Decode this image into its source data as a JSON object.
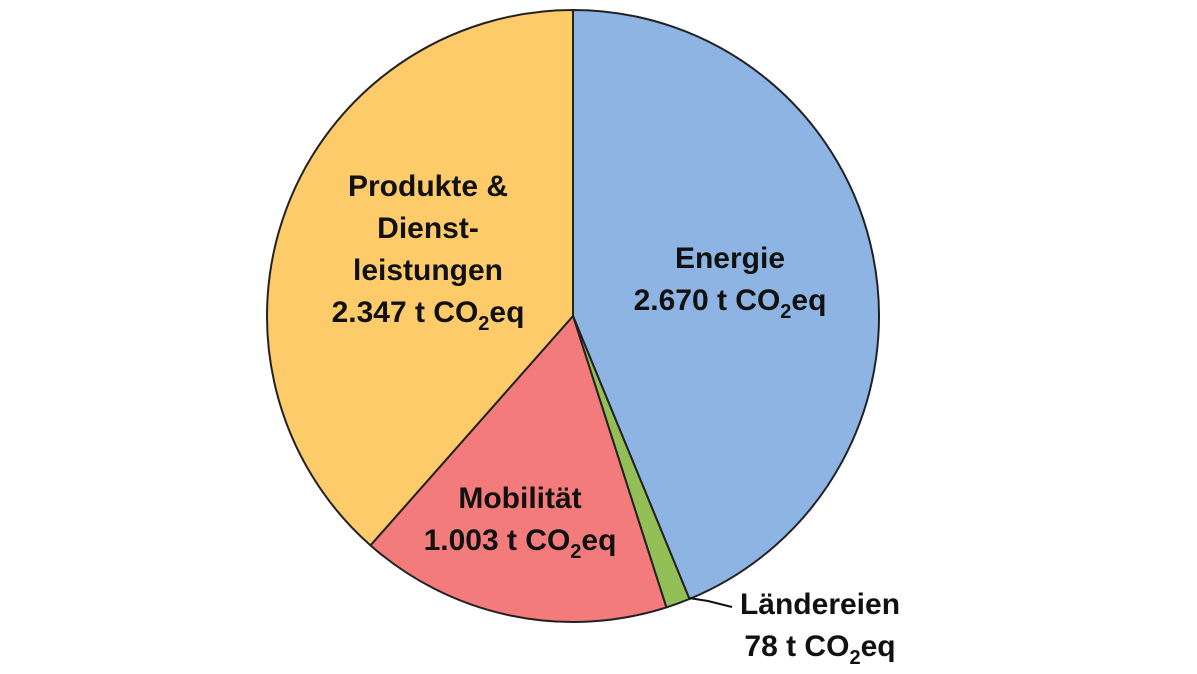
{
  "chart_data": {
    "type": "pie",
    "start_angle_deg": 0,
    "direction": "clockwise",
    "slices": [
      {
        "key": "energie",
        "value": 2670,
        "color": "#8EB4E3",
        "label_lines": [
          "Energie"
        ],
        "value_label": {
          "pre": "2.670 t CO",
          "sub": "2",
          "post": "eq"
        }
      },
      {
        "key": "laendereien",
        "value": 78,
        "color": "#92C057",
        "label_lines": [
          "Ländereien"
        ],
        "value_label": {
          "pre": "78 t CO",
          "sub": "2",
          "post": "eq"
        }
      },
      {
        "key": "mobilitaet",
        "value": 1003,
        "color": "#F47B7B",
        "label_lines": [
          "Mobilität"
        ],
        "value_label": {
          "pre": "1.003 t CO",
          "sub": "2",
          "post": "eq"
        }
      },
      {
        "key": "produkte",
        "value": 2347,
        "color": "#FDCB6A",
        "label_lines": [
          "Produkte &",
          "Dienst-",
          "leistungen"
        ],
        "value_label": {
          "pre": "2.347 t CO",
          "sub": "2",
          "post": "eq"
        }
      }
    ]
  }
}
